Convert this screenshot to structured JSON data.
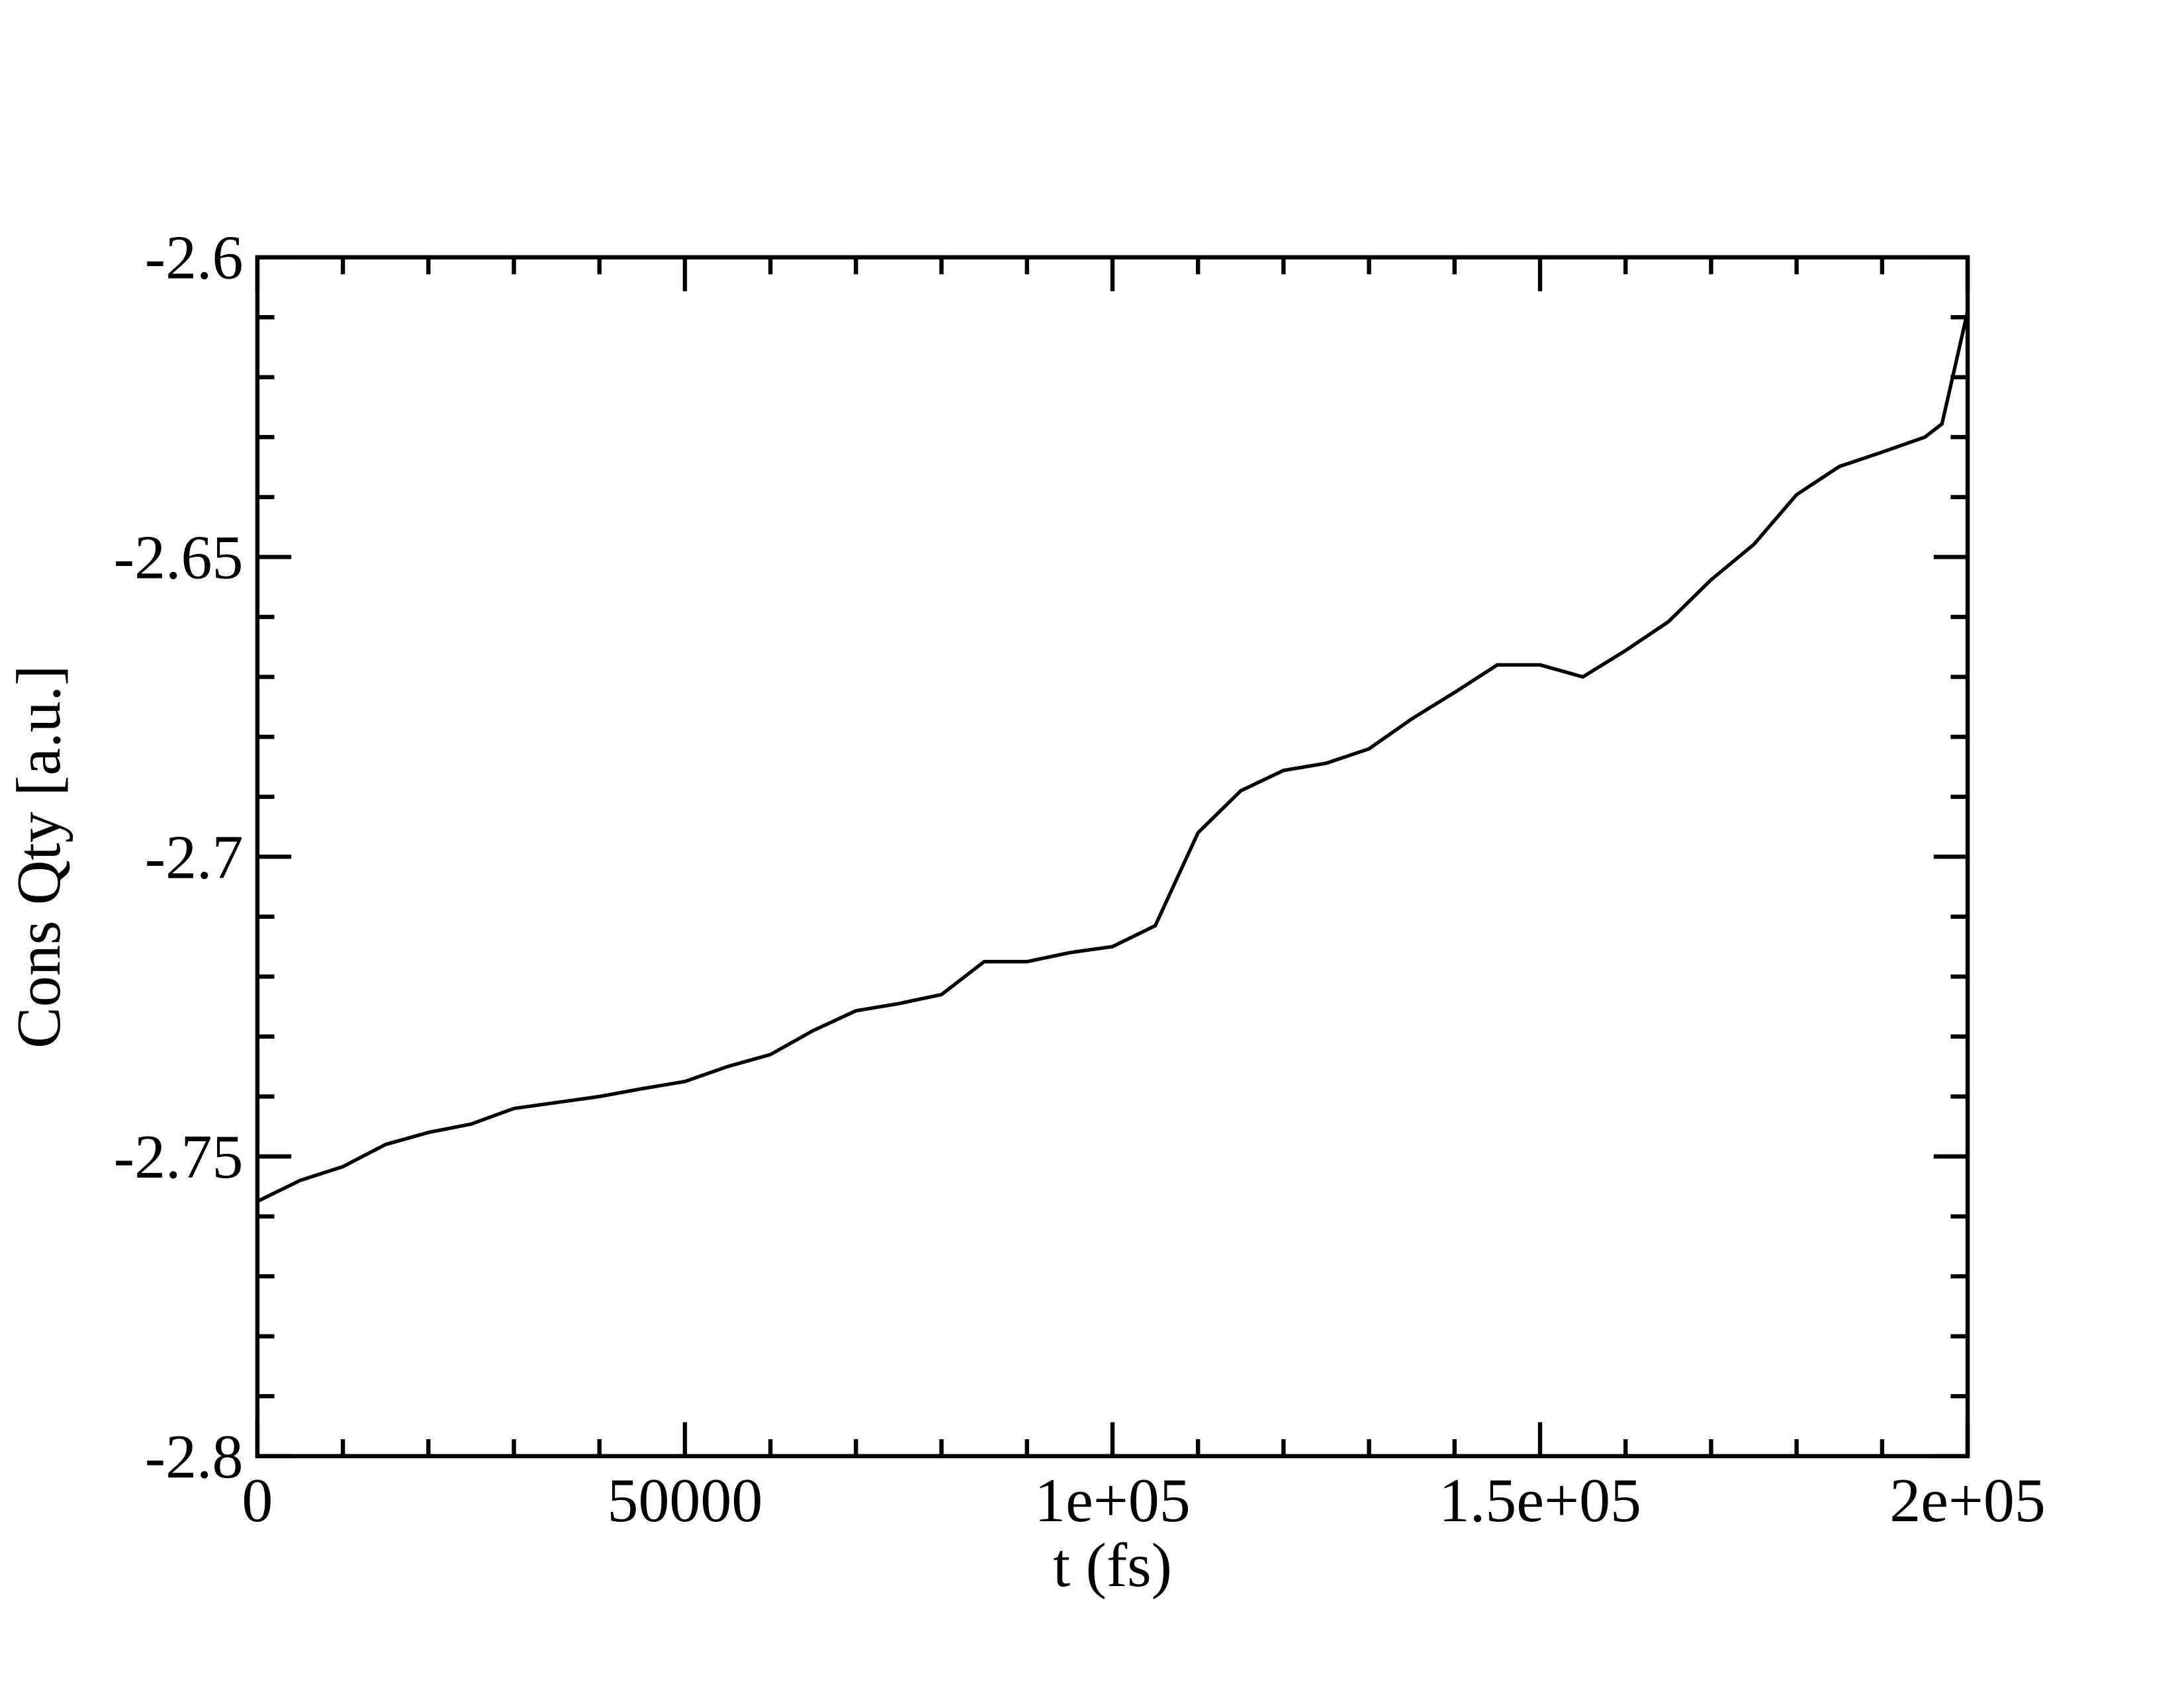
{
  "chart_data": {
    "type": "line",
    "x_label": "t (fs)",
    "y_label": "Cons Qty [a.u.]",
    "xlim": [
      0,
      200000
    ],
    "ylim": [
      -2.8,
      -2.6
    ],
    "xticks": [
      0,
      50000,
      {
        "value": 100000,
        "label": "1e+05"
      },
      {
        "value": 150000,
        "label": "1.5e+05"
      },
      {
        "value": 200000,
        "label": "2e+05"
      }
    ],
    "yticks": [
      -2.8,
      -2.75,
      -2.7,
      -2.65,
      -2.6
    ],
    "series": [
      {
        "name": "Cons Qty",
        "color": "#000000",
        "x": [
          0,
          5000,
          10000,
          15000,
          20000,
          25000,
          30000,
          35000,
          40000,
          45000,
          50000,
          55000,
          60000,
          65000,
          70000,
          75000,
          80000,
          85000,
          90000,
          95000,
          100000,
          105000,
          110000,
          115000,
          120000,
          125000,
          130000,
          135000,
          140000,
          145000,
          150000,
          155000,
          160000,
          165000,
          170000,
          175000,
          180000,
          185000,
          190000,
          195000,
          197000,
          200000
        ],
        "values": [
          -2.7575,
          -2.754,
          -2.7517,
          -2.748,
          -2.746,
          -2.7446,
          -2.742,
          -2.741,
          -2.74,
          -2.7387,
          -2.7375,
          -2.735,
          -2.733,
          -2.729,
          -2.7257,
          -2.7245,
          -2.723,
          -2.7175,
          -2.7175,
          -2.716,
          -2.715,
          -2.7115,
          -2.696,
          -2.689,
          -2.6856,
          -2.6844,
          -2.682,
          -2.677,
          -2.6726,
          -2.668,
          -2.668,
          -2.67,
          -2.6656,
          -2.6608,
          -2.6538,
          -2.6479,
          -2.6396,
          -2.6349,
          -2.6325,
          -2.63,
          -2.6278,
          -2.609
        ]
      }
    ]
  }
}
